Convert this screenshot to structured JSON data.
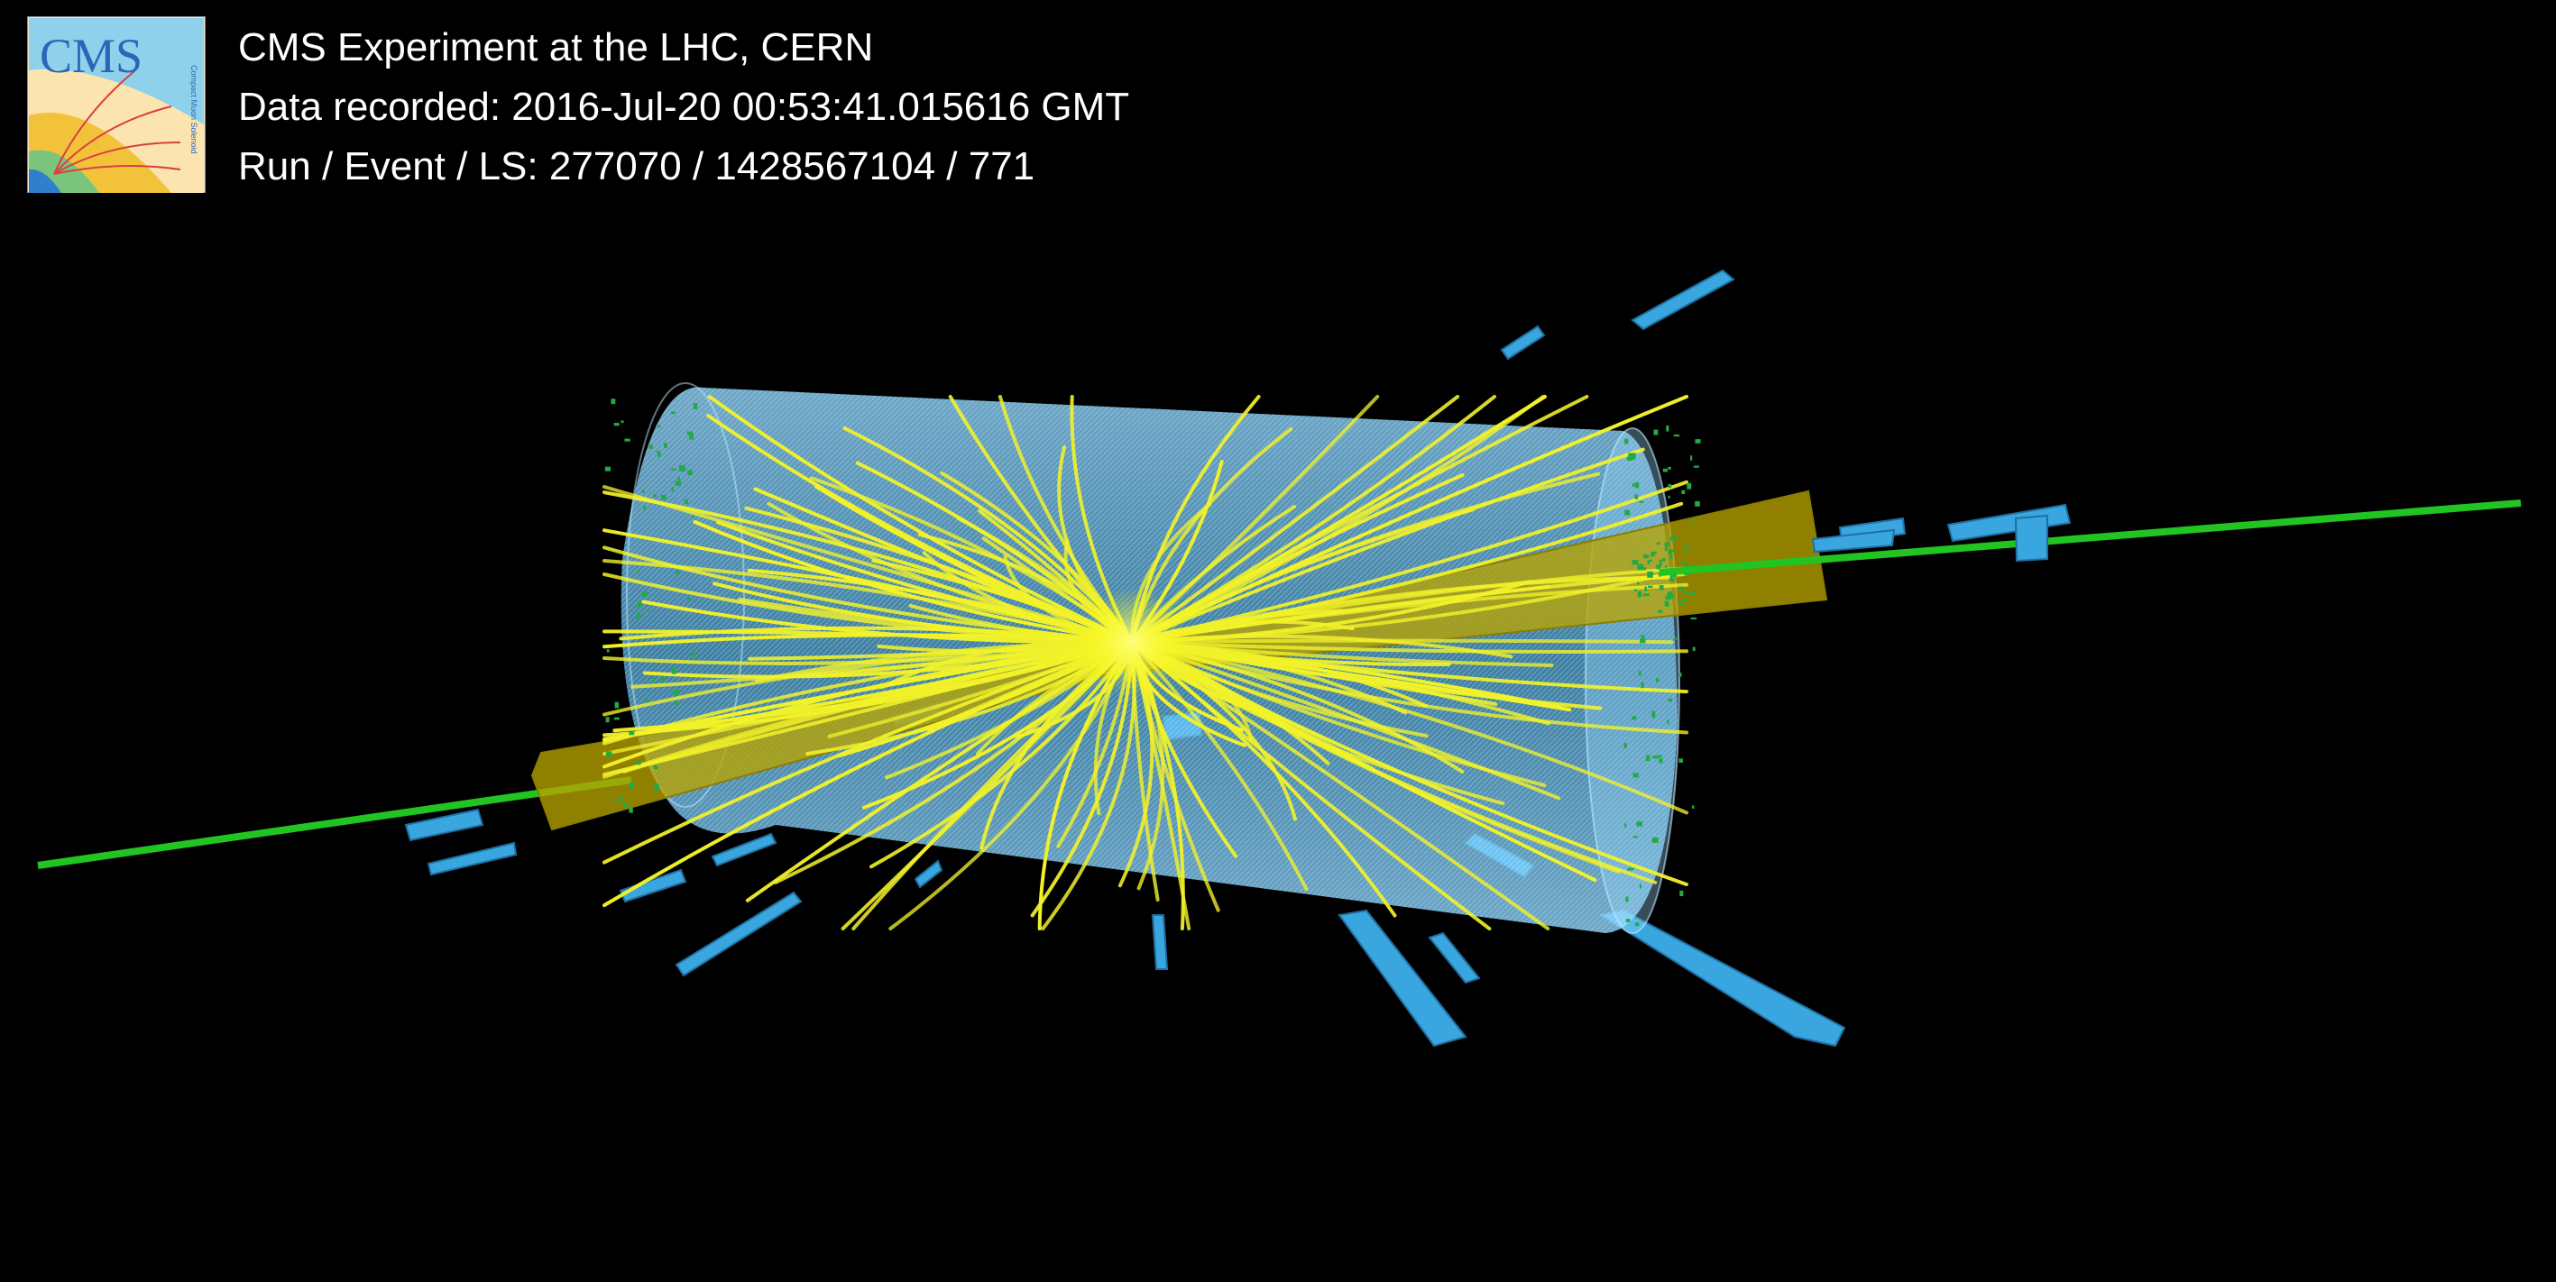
{
  "header": {
    "logo_text": "CMS",
    "logo_subtext": "Compact Muon Solenoid",
    "title": "CMS Experiment at the LHC, CERN",
    "data_recorded": "Data recorded: 2016-Jul-20 00:53:41.015616 GMT",
    "run_event_ls": "Run / Event / LS: 277070 / 1428567104 / 771"
  },
  "colors": {
    "background": "#000000",
    "tracker_barrel": "#6ec3f0",
    "tracks": "#f2f22a",
    "muons": "#22c422",
    "jet_cones": "#b8a400",
    "muon_chambers": "#3aa6e0",
    "calo_hits": "#22aa44"
  }
}
